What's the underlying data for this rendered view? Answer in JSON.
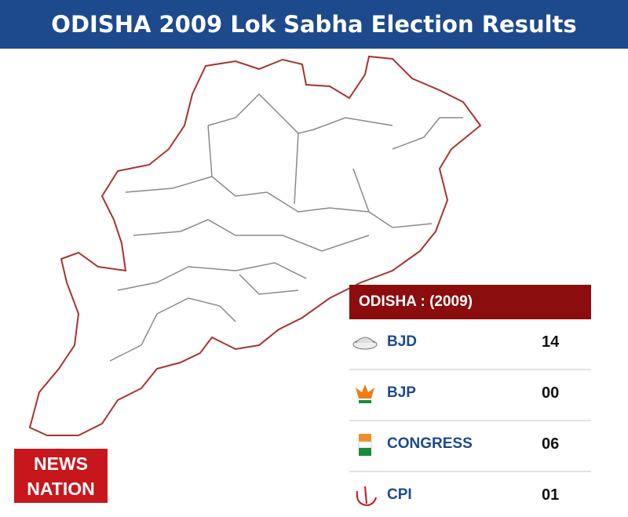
{
  "header": {
    "title": "ODISHA 2009 Lok Sabha Election Results"
  },
  "results": {
    "title": "ODISHA : (2009)",
    "rows": [
      [
        "BJD",
        "14"
      ],
      [
        "BJP",
        "00"
      ],
      [
        "CONGRESS",
        "06"
      ],
      [
        "CPI",
        "01"
      ]
    ]
  },
  "logo": {
    "line1": "NEWS",
    "line2": "NATION"
  }
}
